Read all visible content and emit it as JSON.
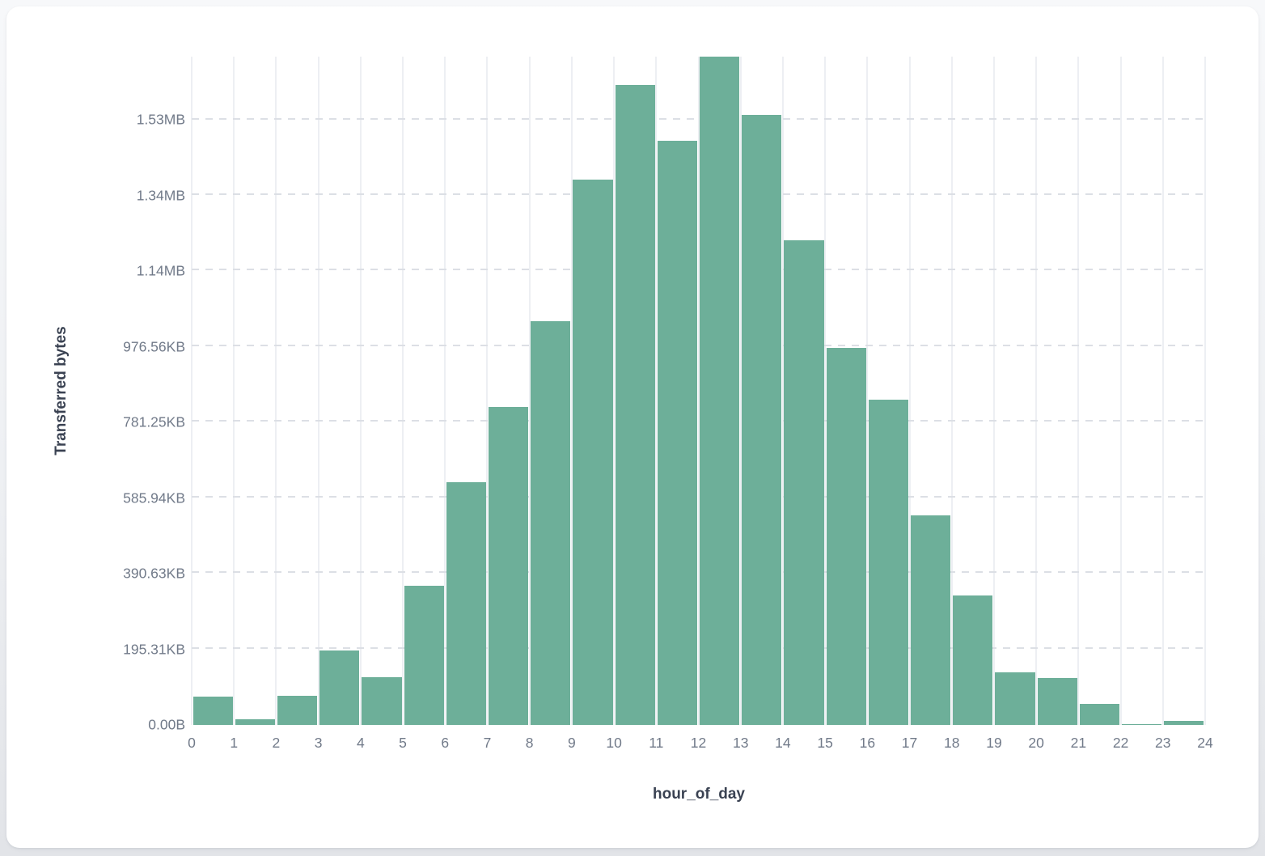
{
  "chart_data": {
    "type": "bar",
    "title": "",
    "xlabel": "hour_of_day",
    "ylabel": "Transferred bytes",
    "legend": false,
    "grid": true,
    "bar_color": "#6DAF99",
    "x_tick_labels": [
      "0",
      "1",
      "2",
      "3",
      "4",
      "5",
      "6",
      "7",
      "8",
      "9",
      "10",
      "11",
      "12",
      "13",
      "14",
      "15",
      "16",
      "17",
      "18",
      "19",
      "20",
      "21",
      "22",
      "23",
      "24"
    ],
    "y_ticks": [
      {
        "label": "0.00B",
        "bytes": 0
      },
      {
        "label": "195.31KB",
        "bytes": 200000
      },
      {
        "label": "390.63KB",
        "bytes": 400000
      },
      {
        "label": "585.94KB",
        "bytes": 600000
      },
      {
        "label": "781.25KB",
        "bytes": 800000
      },
      {
        "label": "976.56KB",
        "bytes": 1000000
      },
      {
        "label": "1.14MB",
        "bytes": 1200000
      },
      {
        "label": "1.34MB",
        "bytes": 1400000
      },
      {
        "label": "1.53MB",
        "bytes": 1600000
      }
    ],
    "ylim_bytes": [
      0,
      1768000
    ],
    "categories_hour_of_day": [
      0,
      1,
      2,
      3,
      4,
      5,
      6,
      7,
      8,
      9,
      10,
      11,
      12,
      13,
      14,
      15,
      16,
      17,
      18,
      19,
      20,
      21,
      22,
      23
    ],
    "values_transferred_bytes": [
      74000,
      15000,
      77000,
      198000,
      126000,
      368500,
      643000,
      841000,
      1068000,
      1443000,
      1693000,
      1546000,
      1768000,
      1614000,
      1282000,
      998000,
      860000,
      554000,
      343000,
      139000,
      125000,
      56500,
      2000,
      10000
    ]
  }
}
